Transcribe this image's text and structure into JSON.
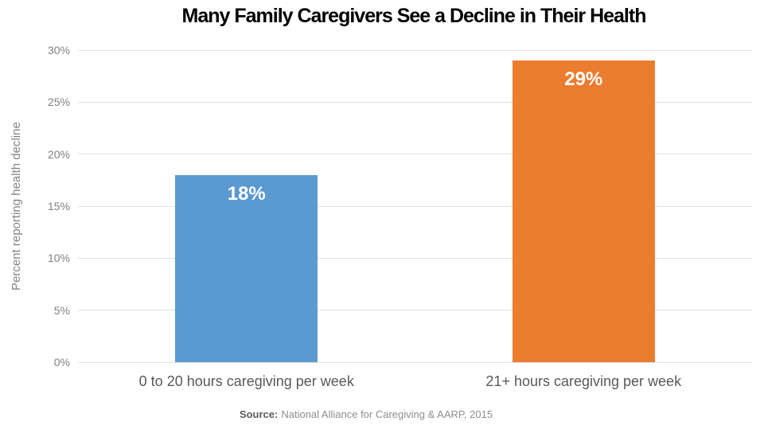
{
  "title": "Many Family Caregivers See a Decline in Their Health",
  "source": {
    "label": "Source:",
    "text": "National Alliance for Caregiving & AARP, 2015"
  },
  "colors": {
    "bar_blue": "#5b99d1",
    "bar_orange": "#ec7c30",
    "gridline": "#e2e2e2",
    "title_text": "#000000",
    "axis_text": "#808080",
    "category_text": "#595959",
    "value_label_text": "#ffffff"
  },
  "chart_data": {
    "type": "bar",
    "title": "Many Family Caregivers See a Decline in Their Health",
    "categories": [
      "0 to 20 hours caregiving per week",
      "21+ hours caregiving per week"
    ],
    "values": [
      18,
      29
    ],
    "value_labels": [
      "18%",
      "29%"
    ],
    "bar_colors": [
      "#5b99d1",
      "#ec7c30"
    ],
    "xlabel": "",
    "ylabel": "Percent reporting health decline",
    "ylim": [
      0,
      30
    ],
    "ytick_step": 5,
    "yticks": [
      "0%",
      "5%",
      "10%",
      "15%",
      "20%",
      "25%",
      "30%"
    ],
    "grid": true,
    "legend_position": "none",
    "annotations": [
      "Source: National Alliance for Caregiving & AARP, 2015"
    ]
  }
}
